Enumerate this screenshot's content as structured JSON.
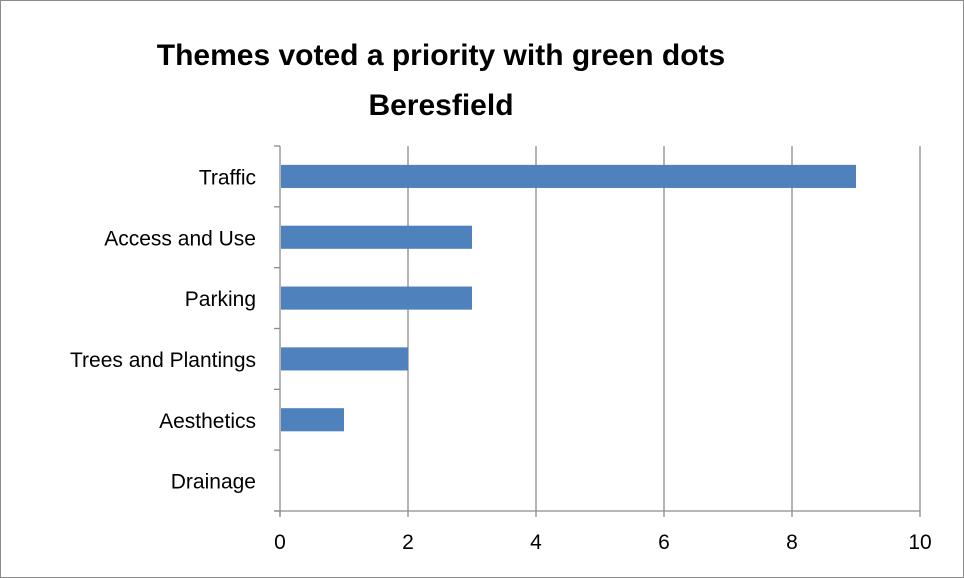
{
  "chart_data": {
    "type": "bar",
    "orientation": "horizontal",
    "title": [
      "Themes voted a priority with green dots",
      "Beresfield"
    ],
    "categories": [
      "Traffic",
      "Access and Use",
      "Parking",
      "Trees and Plantings",
      "Aesthetics",
      "Drainage"
    ],
    "values": [
      9,
      3,
      3,
      2,
      1,
      0
    ],
    "xlim": [
      0,
      10
    ],
    "xticks": [
      "0",
      "2",
      "4",
      "6",
      "8",
      "10"
    ],
    "grid": true,
    "legend": "none",
    "colors": {
      "bar": "#4f81bd",
      "grid": "#8c8c8c",
      "axis": "#8c8c8c"
    }
  }
}
